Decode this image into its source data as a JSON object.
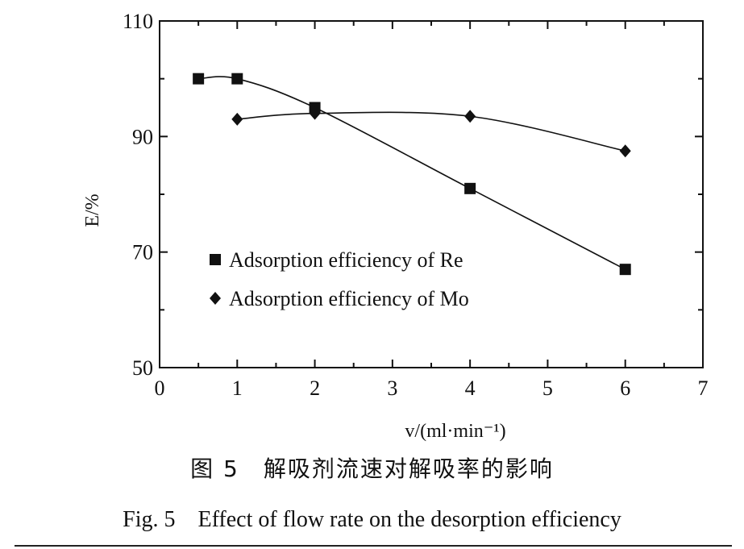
{
  "chart_data": {
    "type": "line",
    "xlabel": "v/(ml·min⁻¹)",
    "ylabel": "E/%",
    "xlim": [
      0,
      7
    ],
    "ylim": [
      50,
      110
    ],
    "x_ticks": [
      "0",
      "1",
      "2",
      "3",
      "4",
      "5",
      "6",
      "7"
    ],
    "y_ticks": [
      "50",
      "70",
      "90",
      "110"
    ],
    "grid": false,
    "legend_position": "left-middle",
    "series": [
      {
        "name": "Adsorption efficiency of Re",
        "marker": "square",
        "color": "#111111",
        "x": [
          0.5,
          1,
          2,
          4,
          6
        ],
        "y": [
          100,
          100,
          95,
          81,
          67
        ]
      },
      {
        "name": "Adsorption efficiency of Mo",
        "marker": "diamond",
        "color": "#111111",
        "x": [
          1,
          2,
          4,
          6
        ],
        "y": [
          93,
          94,
          93.5,
          87.5
        ]
      }
    ]
  },
  "caption": {
    "cn": "图 5　解吸剂流速对解吸率的影响",
    "en": "Fig. 5　Effect of flow rate on the desorption efficiency"
  }
}
